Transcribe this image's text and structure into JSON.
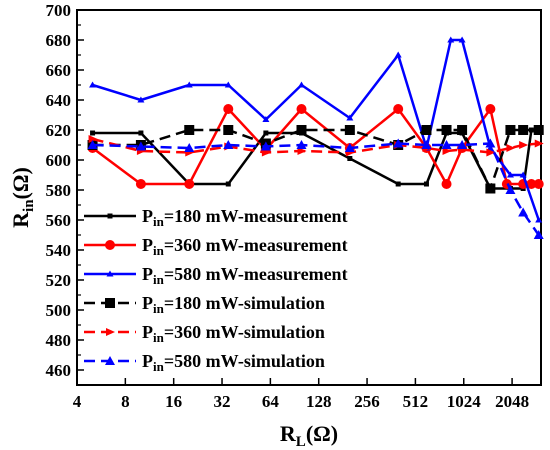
{
  "chart_data": {
    "type": "line",
    "xaxis": {
      "label_main": "R",
      "label_sub": "L",
      "label_unit": "(Ω)",
      "scale": "log2",
      "range": [
        4,
        3100
      ],
      "ticks": [
        4,
        8,
        16,
        32,
        64,
        128,
        256,
        512,
        1024,
        2048
      ],
      "tick_labels": [
        "4",
        "8",
        "16",
        "32",
        "64",
        "128",
        "256",
        "512",
        "1024",
        "2048"
      ]
    },
    "yaxis": {
      "label_main": "R",
      "label_sub": "in",
      "label_unit": "(Ω)",
      "range": [
        450,
        700
      ],
      "ticks": [
        460,
        480,
        500,
        520,
        540,
        560,
        580,
        600,
        620,
        640,
        660,
        680,
        700
      ],
      "tick_labels": [
        "460",
        "480",
        "500",
        "520",
        "540",
        "560",
        "580",
        "600",
        "620",
        "640",
        "660",
        "680",
        "700"
      ]
    },
    "grid": false,
    "legend_position": "bottom-left",
    "series": [
      {
        "label_prefix": "P",
        "label_sub": "in",
        "label_rest": "=180 mW-measurement",
        "color": "#000000",
        "dash": "solid",
        "marker": "square-small",
        "width": 2.5,
        "x": [
          5,
          10,
          20,
          35,
          60,
          100,
          200,
          400,
          600,
          800,
          1000,
          1500,
          2000,
          2400,
          2700,
          3000
        ],
        "y": [
          618,
          618,
          584,
          584,
          618,
          618,
          601,
          584,
          584,
          618,
          618,
          581,
          581,
          581,
          620,
          620
        ]
      },
      {
        "label_prefix": "P",
        "label_sub": "in",
        "label_rest": "=360 mW-measurement",
        "color": "#ff0000",
        "dash": "solid",
        "marker": "circle",
        "width": 2.5,
        "x": [
          5,
          10,
          20,
          35,
          60,
          100,
          200,
          400,
          600,
          800,
          1000,
          1500,
          1900,
          2400,
          2700,
          3000
        ],
        "y": [
          608,
          584,
          584,
          634,
          607,
          634,
          608,
          634,
          608,
          584,
          608,
          634,
          584,
          584,
          584,
          584
        ]
      },
      {
        "label_prefix": "P",
        "label_sub": "in",
        "label_rest": "=580 mW-measurement",
        "color": "#0000ff",
        "dash": "solid",
        "marker": "triangle-small",
        "width": 2.5,
        "x": [
          5,
          10,
          20,
          35,
          60,
          100,
          200,
          400,
          600,
          850,
          1000,
          1500,
          2000,
          2400,
          3000
        ],
        "y": [
          650,
          640,
          650,
          650,
          627,
          650,
          628,
          670,
          608,
          680,
          680,
          608,
          590,
          590,
          560
        ]
      },
      {
        "label_prefix": "P",
        "label_sub": "in",
        "label_rest": "=180 mW-simulation",
        "color": "#000000",
        "dash": "dash",
        "marker": "square",
        "width": 2.5,
        "x": [
          5,
          10,
          20,
          35,
          60,
          100,
          200,
          400,
          600,
          800,
          1000,
          1500,
          2000,
          2400,
          3000
        ],
        "y": [
          610,
          610,
          620,
          620,
          611,
          620,
          620,
          610,
          620,
          620,
          620,
          581,
          620,
          620,
          620
        ]
      },
      {
        "label_prefix": "P",
        "label_sub": "in",
        "label_rest": "=360 mW-simulation",
        "color": "#ff0000",
        "dash": "dash",
        "marker": "arrow-right",
        "width": 2.5,
        "x": [
          5,
          10,
          20,
          35,
          60,
          100,
          200,
          400,
          600,
          800,
          1000,
          1500,
          2000,
          2400,
          3000
        ],
        "y": [
          614,
          606,
          605,
          609,
          605,
          606,
          605,
          610,
          608,
          606,
          607,
          605,
          608,
          610,
          611
        ]
      },
      {
        "label_prefix": "P",
        "label_sub": "in",
        "label_rest": "=580 mW-simulation",
        "color": "#0000ff",
        "dash": "dash",
        "marker": "triangle",
        "width": 2.5,
        "x": [
          5,
          10,
          20,
          35,
          60,
          100,
          200,
          400,
          600,
          800,
          1000,
          1500,
          2000,
          2400,
          3000
        ],
        "y": [
          610,
          609,
          608,
          610,
          609,
          610,
          608,
          611,
          610,
          610,
          610,
          611,
          580,
          565,
          550
        ]
      }
    ]
  }
}
